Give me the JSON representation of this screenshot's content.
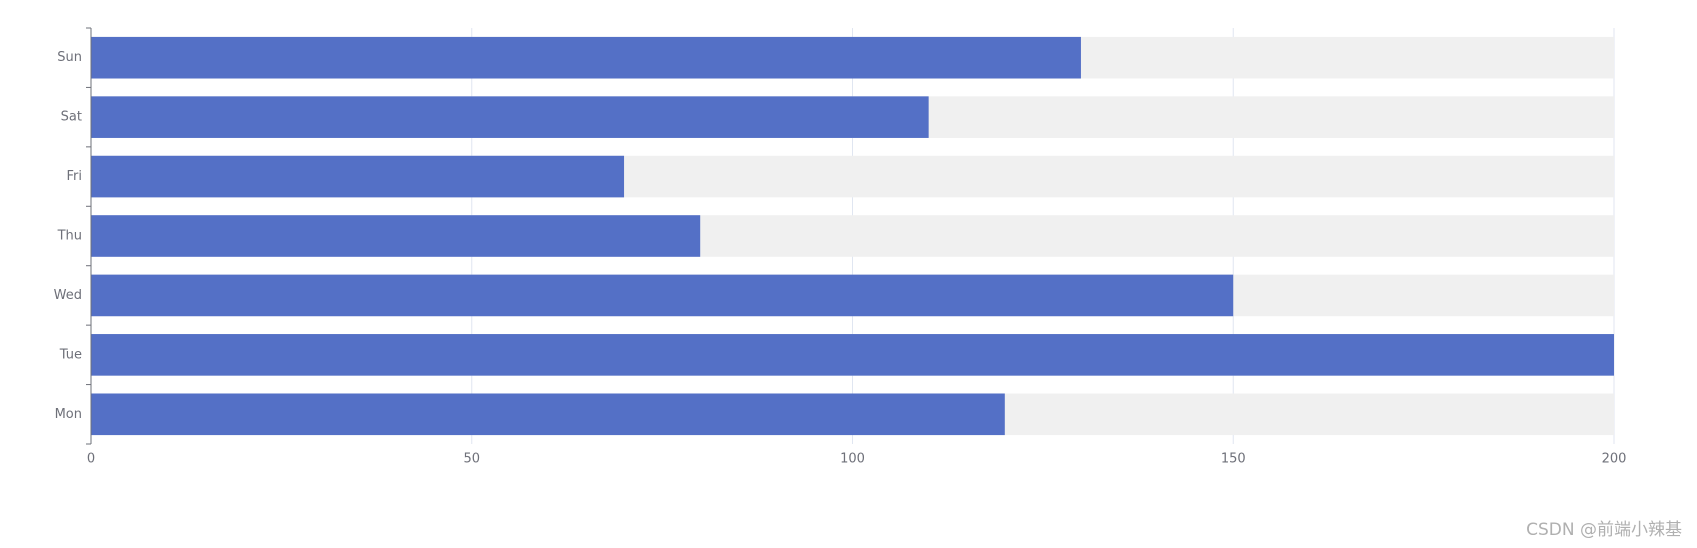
{
  "chart_data": {
    "type": "bar",
    "orientation": "horizontal",
    "categories": [
      "Mon",
      "Tue",
      "Wed",
      "Thu",
      "Fri",
      "Sat",
      "Sun"
    ],
    "values": [
      120,
      200,
      150,
      80,
      70,
      110,
      130
    ],
    "color": "#5470c6",
    "show_background": true,
    "background_color": "#f0f0f0",
    "xlim": [
      0,
      200
    ],
    "xticks": [
      0,
      50,
      100,
      150,
      200
    ],
    "grid": true
  },
  "watermark": "CSDN @前端小辣基"
}
